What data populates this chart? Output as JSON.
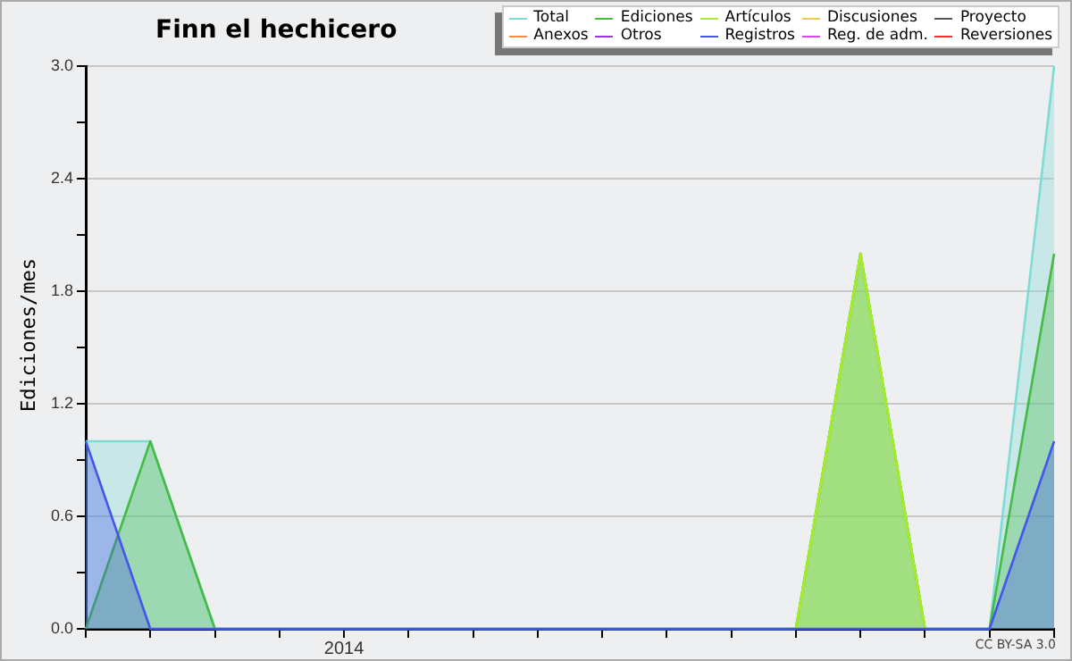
{
  "chart_data": {
    "type": "area",
    "title": "Finn el hechicero",
    "ylabel": "Ediciones/mes",
    "categories": [
      null,
      null,
      null,
      null,
      "2014",
      null,
      null,
      null,
      null,
      null,
      null,
      null,
      null,
      null,
      null,
      null
    ],
    "series": [
      {
        "name": "Total",
        "color": "#7fdcd4",
        "values": [
          1,
          1,
          0,
          0,
          0,
          0,
          0,
          0,
          0,
          0,
          0,
          0,
          2,
          0,
          0,
          3
        ]
      },
      {
        "name": "Ediciones",
        "color": "#44bb44",
        "values": [
          0,
          1,
          0,
          0,
          0,
          0,
          0,
          0,
          0,
          0,
          0,
          0,
          2,
          0,
          0,
          2
        ]
      },
      {
        "name": "Artículos",
        "color": "#aaee22",
        "values": [
          null,
          null,
          null,
          null,
          null,
          null,
          null,
          null,
          null,
          null,
          null,
          0,
          2,
          0,
          null,
          null
        ]
      },
      {
        "name": "Discusiones",
        "color": "#f0d040",
        "values": [
          null,
          null,
          null,
          null,
          null,
          null,
          null,
          null,
          null,
          null,
          null,
          null,
          null,
          null,
          null,
          null
        ]
      },
      {
        "name": "Proyecto",
        "color": "#555555",
        "values": [
          null,
          null,
          null,
          null,
          null,
          null,
          null,
          null,
          null,
          null,
          null,
          null,
          null,
          null,
          null,
          null
        ]
      },
      {
        "name": "Anexos",
        "color": "#ff8844",
        "values": [
          null,
          null,
          null,
          null,
          null,
          null,
          null,
          null,
          null,
          null,
          null,
          null,
          null,
          null,
          null,
          null
        ]
      },
      {
        "name": "Otros",
        "color": "#9933ee",
        "values": [
          null,
          null,
          null,
          null,
          null,
          null,
          null,
          null,
          null,
          null,
          null,
          null,
          null,
          null,
          null,
          null
        ]
      },
      {
        "name": "Registros",
        "color": "#4455ee",
        "values": [
          1,
          0,
          0,
          0,
          0,
          0,
          0,
          0,
          0,
          0,
          0,
          0,
          0,
          0,
          0,
          1
        ]
      },
      {
        "name": "Reg. de adm.",
        "color": "#dd44ee",
        "values": [
          null,
          null,
          null,
          null,
          null,
          null,
          null,
          null,
          null,
          null,
          null,
          null,
          null,
          null,
          null,
          null
        ]
      },
      {
        "name": "Reversiones",
        "color": "#ee3333",
        "values": [
          null,
          null,
          null,
          null,
          null,
          null,
          null,
          null,
          null,
          null,
          null,
          null,
          null,
          null,
          null,
          null
        ]
      }
    ],
    "ylim": [
      0,
      3
    ],
    "yticks": [
      {
        "value": 0,
        "label": "0.0"
      },
      {
        "value": 0.3,
        "label": null
      },
      {
        "value": 0.6,
        "label": "0.6"
      },
      {
        "value": 0.9,
        "label": null
      },
      {
        "value": 1.2,
        "label": "1.2"
      },
      {
        "value": 1.5,
        "label": null
      },
      {
        "value": 1.8,
        "label": "1.8"
      },
      {
        "value": 2.1,
        "label": null
      },
      {
        "value": 2.4,
        "label": "2.4"
      },
      {
        "value": 2.7,
        "label": null
      },
      {
        "value": 3,
        "label": "3.0"
      }
    ],
    "grid": "y",
    "legend": "top right",
    "marker": "none",
    "line_style": "solid",
    "annotations": [
      "CC BY-SA 3.0"
    ]
  }
}
